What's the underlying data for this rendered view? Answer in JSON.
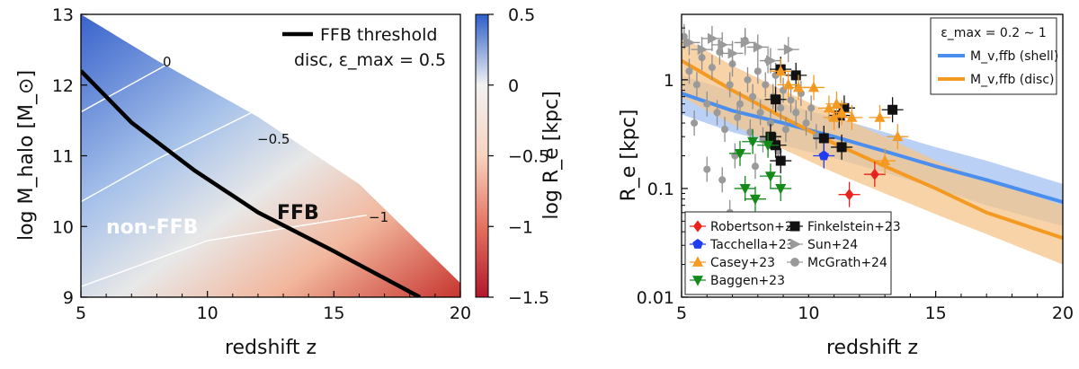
{
  "chart_data": [
    {
      "type": "heatmap",
      "xlabel": "redshift z",
      "ylabel": "log M_halo [M_⊙]",
      "xlim": [
        5,
        20
      ],
      "ylim": [
        9,
        13
      ],
      "x_ticks": [
        "5",
        "10",
        "15",
        "20"
      ],
      "y_ticks": [
        "9",
        "10",
        "11",
        "12",
        "13"
      ],
      "colorbar": {
        "label": "log R_e [kpc]",
        "range": [
          -1.5,
          0.5
        ],
        "ticks": [
          "0.5",
          "0",
          "−0.5",
          "−1",
          "−1.5"
        ],
        "colormap": "RdBu (red low, blue high)",
        "color_low": "#b2182b",
        "color_mid": "#f7f7f7",
        "color_high": "#2c5ec9"
      },
      "contours": [
        {
          "label": "0",
          "points": [
            [
              5,
              11.62
            ],
            [
              8.4,
              12.29
            ]
          ]
        },
        {
          "label": "−0.5",
          "points": [
            [
              5,
              10.35
            ],
            [
              8,
              10.95
            ],
            [
              11.8,
              11.62
            ]
          ]
        },
        {
          "label": "−1",
          "points": [
            [
              5,
              9.15
            ],
            [
              10,
              9.8
            ],
            [
              16.3,
              10.16
            ]
          ]
        }
      ],
      "upper_boundary": [
        [
          5,
          13
        ],
        [
          8,
          12.35
        ],
        [
          12,
          11.55
        ],
        [
          16,
          10.6
        ],
        [
          20,
          9.2
        ]
      ],
      "ffb_threshold": [
        [
          5,
          12.2
        ],
        [
          7,
          11.47
        ],
        [
          9.5,
          10.79
        ],
        [
          12,
          10.2
        ],
        [
          15,
          9.65
        ],
        [
          18.4,
          9.0
        ]
      ],
      "annotations": [
        "0",
        "−0.5",
        "−1",
        "non-FFB",
        "FFB"
      ],
      "legend": {
        "line_label": "FFB threshold",
        "line_label_2": "disc, ε_max = 0.5",
        "position": "top-right"
      }
    },
    {
      "type": "scatter",
      "xlabel": "redshift z",
      "ylabel": "R_e [kpc]",
      "xlim": [
        5,
        20
      ],
      "ylim": [
        0.01,
        4
      ],
      "yscale": "log",
      "x_ticks": [
        "5",
        "10",
        "15",
        "20"
      ],
      "y_ticks": [
        "0.01",
        "0.1",
        "1"
      ],
      "models": [
        {
          "name": "M_v,ffb (shell)",
          "color": "#4a8ef0",
          "x": [
            5,
            7,
            9,
            11,
            13,
            15,
            17,
            20
          ],
          "y": [
            0.75,
            0.52,
            0.4,
            0.3,
            0.22,
            0.16,
            0.12,
            0.075
          ],
          "band_low": [
            0.48,
            0.33,
            0.25,
            0.19,
            0.14,
            0.1,
            0.07,
            0.045
          ],
          "band_high": [
            1.1,
            0.78,
            0.6,
            0.45,
            0.33,
            0.24,
            0.18,
            0.11
          ]
        },
        {
          "name": "M_v,ffb (disc)",
          "color": "#f49a22",
          "x": [
            5,
            7,
            9,
            11,
            13,
            15,
            17,
            20
          ],
          "y": [
            1.5,
            0.8,
            0.45,
            0.26,
            0.16,
            0.1,
            0.06,
            0.035
          ],
          "band_low": [
            0.7,
            0.39,
            0.23,
            0.14,
            0.09,
            0.058,
            0.038,
            0.02
          ],
          "band_high": [
            2.5,
            1.35,
            0.8,
            0.48,
            0.3,
            0.18,
            0.12,
            0.07
          ]
        }
      ],
      "legend_header": "ε_max = 0.2 ∼ 1",
      "series": [
        {
          "name": "Robertson+23",
          "color": "#e8231f",
          "marker": "diamond",
          "points": [
            [
              11.6,
              0.088
            ],
            [
              12.6,
              0.135
            ]
          ]
        },
        {
          "name": "Tacchella+23",
          "color": "#1f3cf0",
          "marker": "pentagon",
          "points": [
            [
              10.6,
              0.2
            ]
          ]
        },
        {
          "name": "Casey+23",
          "color": "#f49a22",
          "marker": "triangle-up",
          "points": [
            [
              8.9,
              1.2
            ],
            [
              9.2,
              0.9
            ],
            [
              9.6,
              0.85
            ],
            [
              10.2,
              0.85
            ],
            [
              10.8,
              0.55
            ],
            [
              11.1,
              0.6
            ],
            [
              11.3,
              0.5
            ],
            [
              11.7,
              0.45
            ],
            [
              12.8,
              0.45
            ],
            [
              13.5,
              0.3
            ],
            [
              13.0,
              0.18
            ],
            [
              11.0,
              0.45
            ]
          ]
        },
        {
          "name": "Baggen+23",
          "color": "#138a1a",
          "marker": "triangle-down",
          "points": [
            [
              7.3,
              0.21
            ],
            [
              7.5,
              0.1
            ],
            [
              7.8,
              0.27
            ],
            [
              7.9,
              0.08
            ],
            [
              8.4,
              0.25
            ],
            [
              8.5,
              0.13
            ],
            [
              8.9,
              0.1
            ]
          ]
        },
        {
          "name": "Finkelstein+23",
          "color": "#111111",
          "marker": "square",
          "points": [
            [
              8.7,
              0.66
            ],
            [
              8.9,
              1.25
            ],
            [
              9.5,
              1.1
            ],
            [
              8.5,
              0.3
            ],
            [
              8.7,
              0.25
            ],
            [
              8.9,
              0.18
            ],
            [
              10.6,
              0.29
            ],
            [
              11.2,
              0.47
            ],
            [
              11.3,
              0.24
            ],
            [
              13.3,
              0.53
            ],
            [
              11.4,
              0.55
            ]
          ]
        },
        {
          "name": "Sun+24",
          "color": "#9a9a9a",
          "marker": "triangle-right",
          "points": [
            [
              5.3,
              2.2
            ],
            [
              5.8,
              1.9
            ],
            [
              6.2,
              2.4
            ],
            [
              6.6,
              2.1
            ],
            [
              7.0,
              1.75
            ],
            [
              7.5,
              2.2
            ],
            [
              8.0,
              2.0
            ],
            [
              8.5,
              1.5
            ],
            [
              9.2,
              1.9
            ]
          ]
        },
        {
          "name": "McGrath+24",
          "color": "#9a9a9a",
          "marker": "circle",
          "points": [
            [
              5.1,
              2.5
            ],
            [
              5.3,
              1.2
            ],
            [
              5.6,
              0.9
            ],
            [
              5.8,
              1.6
            ],
            [
              6.0,
              0.6
            ],
            [
              6.2,
              1.3
            ],
            [
              6.4,
              0.5
            ],
            [
              6.5,
              1.8
            ],
            [
              6.7,
              0.35
            ],
            [
              6.9,
              0.9
            ],
            [
              7.0,
              1.4
            ],
            [
              7.2,
              0.45
            ],
            [
              7.3,
              0.6
            ],
            [
              7.5,
              2.3
            ],
            [
              7.6,
              1.0
            ],
            [
              7.7,
              0.33
            ],
            [
              7.8,
              0.7
            ],
            [
              8.0,
              1.2
            ],
            [
              8.1,
              0.5
            ],
            [
              8.2,
              0.28
            ],
            [
              8.3,
              0.9
            ],
            [
              8.4,
              1.5
            ],
            [
              8.5,
              0.4
            ],
            [
              8.6,
              0.7
            ],
            [
              8.7,
              1.1
            ],
            [
              8.8,
              0.22
            ],
            [
              8.9,
              0.55
            ],
            [
              9.0,
              0.8
            ],
            [
              9.1,
              0.35
            ],
            [
              9.3,
              0.65
            ],
            [
              9.5,
              0.5
            ],
            [
              9.7,
              0.75
            ],
            [
              9.9,
              0.4
            ],
            [
              10.1,
              0.55
            ],
            [
              10.3,
              0.3
            ],
            [
              6.0,
              0.15
            ],
            [
              6.6,
              0.12
            ],
            [
              7.1,
              0.2
            ],
            [
              5.5,
              0.4
            ],
            [
              6.9,
              0.06
            ],
            [
              7.9,
              0.16
            ]
          ]
        }
      ],
      "legend_position": "lower-left"
    }
  ]
}
